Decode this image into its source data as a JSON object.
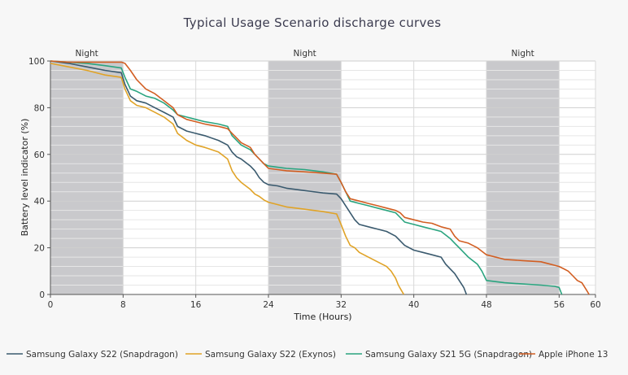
{
  "chart_data": {
    "type": "line",
    "title": "Typical Usage Scenario discharge curves",
    "xlabel": "Time (Hours)",
    "ylabel": "Battery level indicator (%)",
    "xlim": [
      0,
      60
    ],
    "ylim": [
      0,
      100
    ],
    "x_ticks": [
      0,
      8,
      16,
      24,
      32,
      40,
      48,
      56,
      60
    ],
    "y_ticks": [
      0,
      20,
      40,
      60,
      80,
      100
    ],
    "grid": true,
    "legend_position": "bottom",
    "shaded_bands": [
      {
        "label": "Night",
        "x_start": 0,
        "x_end": 8
      },
      {
        "label": "Night",
        "x_start": 24,
        "x_end": 32
      },
      {
        "label": "Night",
        "x_start": 48,
        "x_end": 56
      }
    ],
    "series": [
      {
        "name": "Samsung Galaxy S22 (Snapdragon)",
        "color": "#3a5a6e",
        "x": [
          0,
          2,
          4,
          6,
          7.8,
          8.2,
          8.8,
          9.5,
          10.5,
          11.5,
          12.5,
          13.5,
          14,
          15,
          16,
          17,
          18.5,
          19.5,
          20,
          20.5,
          21,
          22,
          22.5,
          23,
          23.5,
          24,
          25,
          26,
          28,
          30,
          31.5,
          32,
          32.5,
          33,
          33.5,
          34,
          35,
          36,
          37,
          38,
          39,
          40,
          41,
          42,
          43,
          43.5,
          44,
          44.5,
          45,
          45.5,
          45.8
        ],
        "y": [
          100,
          99,
          97.5,
          96,
          95,
          90,
          85,
          83,
          82,
          80,
          78,
          76,
          72,
          70,
          69,
          68,
          66,
          64,
          61,
          59,
          58,
          55,
          53,
          50,
          48,
          47,
          46.5,
          45.5,
          44.5,
          43.5,
          43,
          41,
          38,
          35,
          32,
          30,
          29,
          28,
          27,
          25,
          21,
          19,
          18,
          17,
          16,
          13,
          11,
          9,
          6,
          3,
          0
        ]
      },
      {
        "name": "Samsung Galaxy S22 (Exynos)",
        "color": "#e0a327",
        "x": [
          0,
          2,
          4,
          6,
          7.8,
          8.2,
          8.8,
          9.5,
          10.5,
          11.5,
          12.5,
          13.5,
          14,
          15,
          16,
          17,
          18.5,
          19.5,
          20,
          20.5,
          21,
          22,
          22.5,
          23,
          23.5,
          24,
          25,
          26,
          28,
          30,
          31.5,
          32,
          32.5,
          33,
          33.5,
          34,
          35,
          36,
          37,
          37.5,
          38,
          38.3,
          38.6,
          38.9
        ],
        "y": [
          99,
          97.5,
          96,
          94,
          93,
          88,
          83,
          81,
          80,
          78,
          76,
          73,
          69,
          66,
          64,
          63,
          61,
          58,
          53,
          50,
          48,
          45,
          43,
          42,
          40.5,
          39.5,
          38.5,
          37.5,
          36.5,
          35.5,
          34.5,
          30,
          25,
          21,
          20,
          18,
          16,
          14,
          12,
          10,
          7,
          4,
          2,
          0
        ]
      },
      {
        "name": "Samsung Galaxy S21 5G (Snapdragon)",
        "color": "#2aa47f",
        "x": [
          0,
          2,
          4,
          6,
          7.8,
          8.2,
          8.8,
          9.5,
          10.5,
          11.5,
          12.5,
          13.5,
          14,
          15,
          16,
          17,
          18.5,
          19.5,
          20,
          20.5,
          21,
          22,
          22.5,
          23,
          23.5,
          24,
          25,
          26,
          28,
          30,
          31.5,
          32,
          32.5,
          33,
          34,
          35,
          36,
          37,
          38,
          39,
          40,
          41,
          42,
          43,
          44,
          44.5,
          45,
          45.5,
          46,
          47,
          47.5,
          48,
          50,
          52,
          54,
          55.5,
          56,
          56.3
        ],
        "y": [
          100,
          99.5,
          99,
          98,
          97,
          93,
          88,
          87,
          85,
          84,
          82,
          79,
          77,
          76,
          75,
          74,
          73,
          72,
          68,
          66,
          64,
          62,
          60,
          58,
          56,
          55,
          54.5,
          54,
          53.5,
          52.5,
          51.5,
          48,
          44,
          40,
          39,
          38,
          37,
          36,
          35,
          31,
          30,
          29,
          28,
          27,
          24,
          22,
          20,
          18,
          16,
          13,
          10,
          6,
          5,
          4.5,
          4,
          3.5,
          3,
          0
        ]
      },
      {
        "name": "Apple iPhone 13",
        "color": "#d25e22",
        "x": [
          0,
          2,
          4,
          6,
          7.8,
          8.2,
          8.8,
          9.5,
          10.5,
          11.5,
          12.5,
          13.5,
          14,
          15,
          16,
          17,
          18.5,
          19.5,
          20,
          20.5,
          21,
          22,
          22.5,
          23,
          23.5,
          24,
          25,
          26,
          28,
          30,
          31.5,
          32,
          32.5,
          33,
          34,
          35,
          36,
          37,
          38,
          38.5,
          39,
          40,
          41,
          42,
          43,
          44,
          44.5,
          45,
          46,
          47,
          48,
          50,
          52,
          54,
          55,
          55.5,
          56,
          56.5,
          57,
          57.5,
          58,
          58.5,
          59,
          59.3
        ],
        "y": [
          100,
          99.5,
          99.5,
          99.5,
          99.5,
          99,
          96,
          92,
          88,
          86,
          83,
          80,
          77,
          75,
          74,
          73,
          72,
          71,
          69,
          67,
          65,
          63,
          60,
          58,
          56,
          54,
          53.5,
          53,
          52.5,
          52,
          51.5,
          48,
          44,
          41,
          40,
          39,
          38,
          37,
          36,
          35,
          33,
          32,
          31,
          30.5,
          29,
          28,
          25,
          23,
          22,
          20,
          17,
          15,
          14.5,
          14,
          13,
          12.5,
          12,
          11,
          10,
          8,
          6,
          5,
          2,
          0
        ]
      }
    ]
  }
}
